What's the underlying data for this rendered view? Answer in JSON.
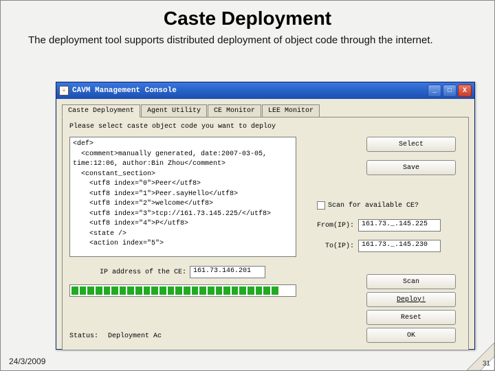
{
  "slide": {
    "title": "Caste Deployment",
    "subtitle": "The deployment tool supports distributed deployment of object code through the internet.",
    "date": "24/3/2009",
    "page": "31"
  },
  "window": {
    "title": "CAVM Management Console",
    "buttons": {
      "min": "_",
      "max": "□",
      "close": "X"
    }
  },
  "tabs": [
    "Caste Deployment",
    "Agent Utility",
    "CE Monitor",
    "LEE Monitor"
  ],
  "activeTab": 0,
  "panel": {
    "prompt": "Please select caste object code you want to deploy",
    "code": [
      "<def>",
      "  <comment>manually generated, date:2007-03-05,",
      "time:12:06, author:Bin Zhou</comment>",
      "  <constant_section>",
      "    <utf8 index=\"0\">Peer</utf8>",
      "    <utf8 index=\"1\">Peer.sayHello</utf8>",
      "    <utf8 index=\"2\">welcome</utf8>",
      "    <utf8 index=\"3\">tcp://161.73.145.225/</utf8>",
      "    <utf8 index=\"4\">P</utf8>",
      "    <state />",
      "    <action index=\"5\">"
    ],
    "buttons": {
      "select": "Select",
      "save": "Save",
      "scan": "Scan",
      "deploy": "Deploy!",
      "reset": "Reset",
      "ok": "OK"
    },
    "scan": {
      "label": "Scan for available CE?",
      "fromLabel": "From(IP):",
      "fromValue": "161.73._.145.225",
      "toLabel": "To(IP):",
      "toValue": "161.73._.145.230"
    },
    "ip": {
      "label": "IP address of the CE:",
      "value": "161.73.146.201"
    },
    "status": {
      "label": "Status:",
      "value": "Deployment Ac"
    },
    "progress": {
      "filled": 26,
      "total": 28
    }
  },
  "colors": {
    "titlebar_start": "#3b77dd",
    "titlebar_end": "#1e4fb0",
    "panel_bg": "#ece9d8",
    "progress_green": "#22aa22"
  }
}
